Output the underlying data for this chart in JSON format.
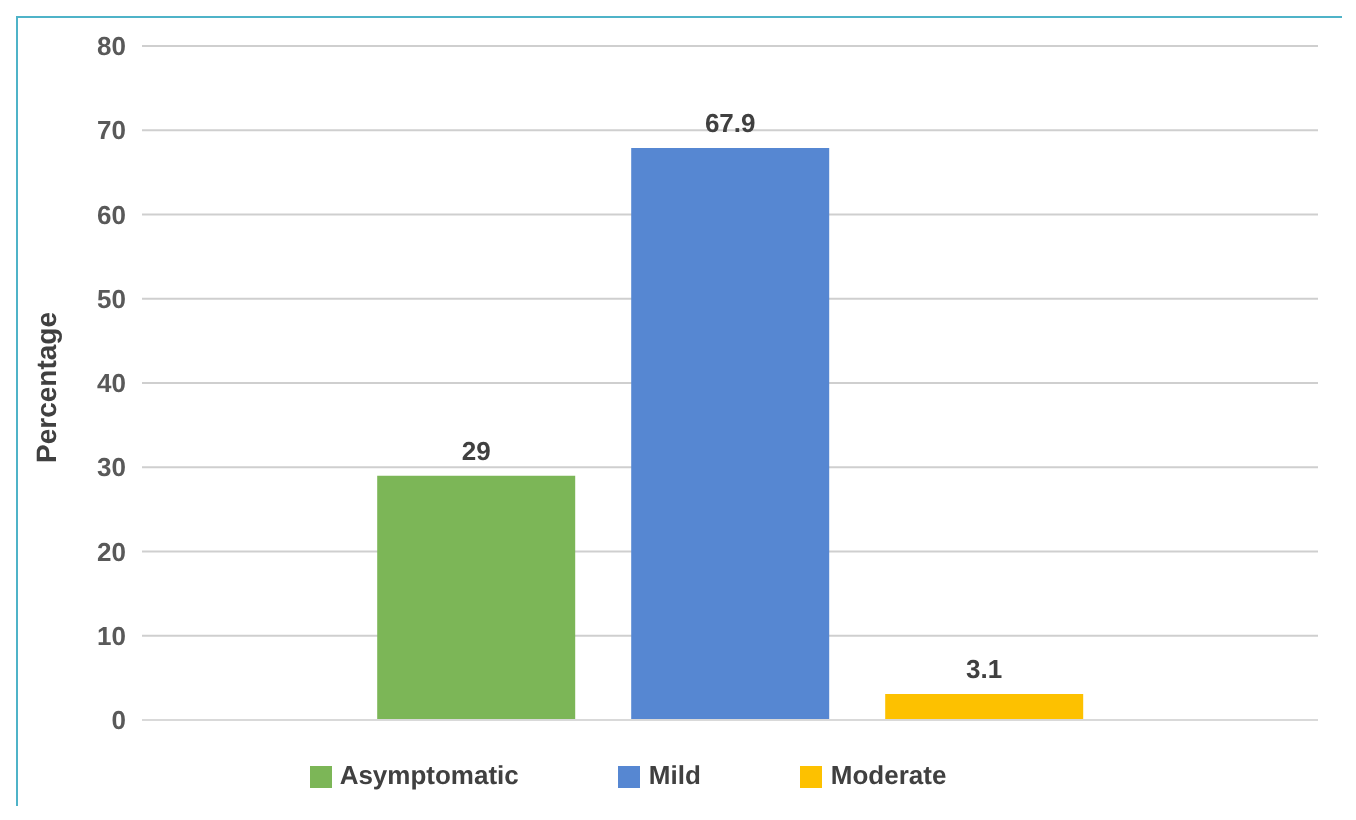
{
  "chart_data": {
    "type": "bar",
    "ylabel": "Percentage",
    "categories": [
      null
    ],
    "series": [
      {
        "name": "Asymptomatic",
        "color": "#7cb657",
        "values": [
          29
        ]
      },
      {
        "name": "Mild",
        "color": "#5687d2",
        "values": [
          67.9
        ]
      },
      {
        "name": "Moderate",
        "color": "#fdc100",
        "values": [
          3.1
        ]
      }
    ],
    "ylim": [
      0,
      80
    ],
    "yticks": [
      0,
      10,
      20,
      30,
      40,
      50,
      60,
      70,
      80
    ],
    "grid": "y",
    "legend": "bottom",
    "data_labels": true
  }
}
